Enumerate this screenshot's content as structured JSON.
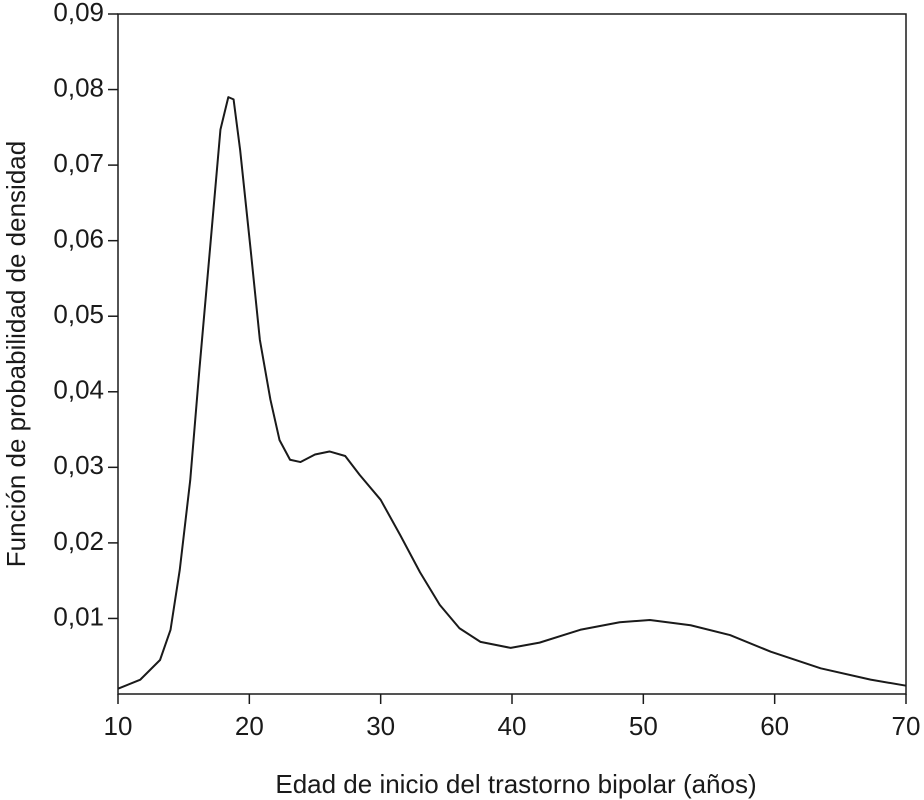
{
  "chart_data": {
    "type": "line",
    "xlabel": "Edad de inicio del trastorno bipolar (años)",
    "ylabel": "Función de probabilidad de densidad",
    "xlim": [
      10,
      70
    ],
    "xticks": [
      10,
      20,
      30,
      40,
      50,
      60,
      70
    ],
    "ylim": [
      0,
      0.09
    ],
    "yticks": [
      {
        "value": 0.01,
        "label": "0,01"
      },
      {
        "value": 0.02,
        "label": "0,02"
      },
      {
        "value": 0.03,
        "label": "0,03"
      },
      {
        "value": 0.04,
        "label": "0,04"
      },
      {
        "value": 0.05,
        "label": "0,05"
      },
      {
        "value": 0.06,
        "label": "0,06"
      },
      {
        "value": 0.07,
        "label": "0,07"
      },
      {
        "value": 0.08,
        "label": "0,08"
      },
      {
        "value": 0.09,
        "label": "0,09"
      }
    ],
    "x": [
      10,
      11.7,
      13.2,
      14.0,
      14.7,
      15.5,
      16.2,
      17.0,
      17.8,
      18.4,
      18.8,
      19.3,
      20.1,
      20.8,
      21.6,
      22.3,
      23.1,
      23.9,
      25.0,
      26.1,
      27.3,
      28.4,
      30.0,
      31.5,
      33.0,
      34.5,
      36.0,
      37.6,
      39.9,
      42.1,
      45.2,
      48.2,
      50.5,
      53.6,
      56.6,
      59.7,
      63.5,
      67.3,
      70
    ],
    "series": [
      {
        "color": "#1a1a1a",
        "values": [
          0.0007,
          0.0019,
          0.0045,
          0.0085,
          0.0164,
          0.0283,
          0.043,
          0.0588,
          0.0747,
          0.079,
          0.0787,
          0.072,
          0.0588,
          0.0469,
          0.039,
          0.0336,
          0.031,
          0.0307,
          0.0317,
          0.0321,
          0.0315,
          0.029,
          0.0257,
          0.021,
          0.0161,
          0.0118,
          0.0087,
          0.0069,
          0.0061,
          0.0068,
          0.0085,
          0.0095,
          0.0098,
          0.0091,
          0.0078,
          0.0056,
          0.0034,
          0.0019,
          0.0011
        ]
      }
    ]
  }
}
